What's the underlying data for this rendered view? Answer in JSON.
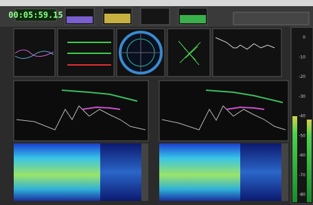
{
  "toolbar": {
    "timecode": "00:05:59.15"
  },
  "level_meter": {
    "scale": [
      "0",
      "-10",
      "-20",
      "-30",
      "-40",
      "-50",
      "-60",
      "-70",
      "-80"
    ]
  }
}
